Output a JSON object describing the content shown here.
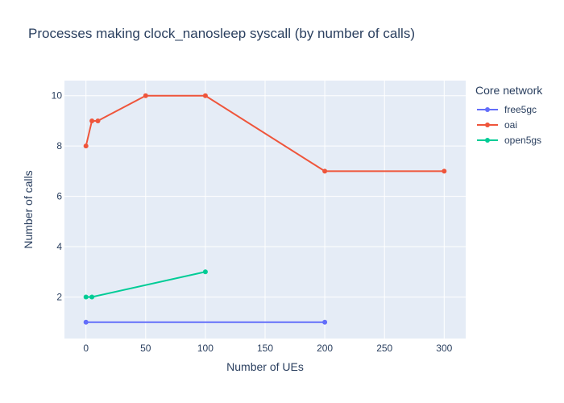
{
  "chart_data": {
    "type": "line",
    "title": "Processes making clock_nanosleep syscall (by number of calls)",
    "xlabel": "Number of UEs",
    "ylabel": "Number of calls",
    "xlim": [
      -18,
      318
    ],
    "ylim": [
      0.35,
      10.6
    ],
    "x_ticks": [
      0,
      50,
      100,
      150,
      200,
      250,
      300
    ],
    "y_ticks": [
      2,
      4,
      6,
      8,
      10
    ],
    "grid": true,
    "legend_title": "Core network",
    "legend_position": "right",
    "series": [
      {
        "name": "free5gc",
        "color": "#636efa",
        "x": [
          0,
          200
        ],
        "y": [
          1,
          1
        ]
      },
      {
        "name": "oai",
        "color": "#ef553b",
        "x": [
          0,
          5,
          10,
          50,
          100,
          200,
          300
        ],
        "y": [
          8,
          9,
          9,
          10,
          10,
          7,
          7
        ]
      },
      {
        "name": "open5gs",
        "color": "#00cc96",
        "x": [
          0,
          5,
          100
        ],
        "y": [
          2,
          2,
          3
        ]
      }
    ]
  }
}
